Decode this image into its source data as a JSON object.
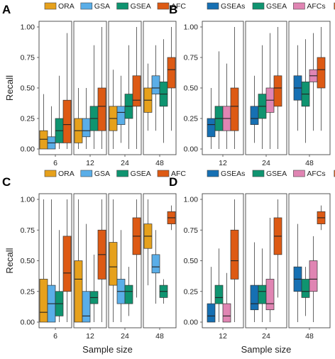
{
  "colors": {
    "ORA": "#e6a11c",
    "GSA": "#5aaee8",
    "GSEA": "#0f9470",
    "AFC": "#dd5a14",
    "GSEAs": "#1670b3",
    "AFCs": "#e085b3"
  },
  "chart_data": [
    {
      "type": "boxplot",
      "panel": "A",
      "xlabel": "",
      "ylabel": "Recall",
      "ylim": [
        0,
        1
      ],
      "yticks": [
        "0.00",
        "0.25",
        "0.50",
        "0.75",
        "1.00"
      ],
      "legend": [
        "ORA",
        "GSA",
        "GSEA",
        "AFC"
      ],
      "groups": [
        {
          "label": "6",
          "boxes": [
            {
              "series": "ORA",
              "min": 0.0,
              "q1": 0.0,
              "median": 0.08,
              "q3": 0.15,
              "max": 0.45
            },
            {
              "series": "GSA",
              "min": 0.0,
              "q1": 0.0,
              "median": 0.05,
              "q3": 0.1,
              "max": 0.35
            },
            {
              "series": "GSEA",
              "min": 0.0,
              "q1": 0.05,
              "median": 0.15,
              "q3": 0.25,
              "max": 0.6
            },
            {
              "series": "AFC",
              "min": 0.0,
              "q1": 0.05,
              "median": 0.2,
              "q3": 0.4,
              "max": 0.95
            }
          ]
        },
        {
          "label": "12",
          "boxes": [
            {
              "series": "ORA",
              "min": 0.0,
              "q1": 0.05,
              "median": 0.15,
              "q3": 0.25,
              "max": 0.5
            },
            {
              "series": "GSA",
              "min": 0.0,
              "q1": 0.1,
              "median": 0.15,
              "q3": 0.25,
              "max": 0.5
            },
            {
              "series": "GSEA",
              "min": 0.0,
              "q1": 0.15,
              "median": 0.25,
              "q3": 0.35,
              "max": 0.85
            },
            {
              "series": "AFC",
              "min": 0.0,
              "q1": 0.15,
              "median": 0.35,
              "q3": 0.5,
              "max": 1.0
            }
          ]
        },
        {
          "label": "24",
          "boxes": [
            {
              "series": "ORA",
              "min": 0.0,
              "q1": 0.15,
              "median": 0.25,
              "q3": 0.35,
              "max": 0.65
            },
            {
              "series": "GSA",
              "min": 0.05,
              "q1": 0.2,
              "median": 0.3,
              "q3": 0.35,
              "max": 0.6
            },
            {
              "series": "GSEA",
              "min": 0.0,
              "q1": 0.25,
              "median": 0.35,
              "q3": 0.45,
              "max": 0.85
            },
            {
              "series": "AFC",
              "min": 0.0,
              "q1": 0.35,
              "median": 0.4,
              "q3": 0.6,
              "max": 1.0
            }
          ]
        },
        {
          "label": "48",
          "boxes": [
            {
              "series": "ORA",
              "min": 0.15,
              "q1": 0.3,
              "median": 0.4,
              "q3": 0.5,
              "max": 0.7
            },
            {
              "series": "GSA",
              "min": 0.15,
              "q1": 0.45,
              "median": 0.5,
              "q3": 0.6,
              "max": 0.85
            },
            {
              "series": "GSEA",
              "min": 0.05,
              "q1": 0.35,
              "median": 0.45,
              "q3": 0.55,
              "max": 0.9
            },
            {
              "series": "AFC",
              "min": 0.15,
              "q1": 0.5,
              "median": 0.65,
              "q3": 0.75,
              "max": 1.0
            }
          ]
        }
      ]
    },
    {
      "type": "boxplot",
      "panel": "B",
      "xlabel": "",
      "ylabel": "",
      "ylim": [
        0,
        1
      ],
      "yticks": [
        "0.00",
        "0.25",
        "0.50",
        "0.75",
        "1.00"
      ],
      "legend": [
        "GSEAs",
        "GSEA",
        "AFCs",
        "AFC"
      ],
      "groups": [
        {
          "label": "12",
          "boxes": [
            {
              "series": "GSEAs",
              "min": 0.0,
              "q1": 0.1,
              "median": 0.2,
              "q3": 0.25,
              "max": 0.5
            },
            {
              "series": "GSEA",
              "min": 0.0,
              "q1": 0.15,
              "median": 0.25,
              "q3": 0.35,
              "max": 0.8
            },
            {
              "series": "AFCs",
              "min": 0.0,
              "q1": 0.15,
              "median": 0.25,
              "q3": 0.35,
              "max": 0.7
            },
            {
              "series": "AFC",
              "min": 0.0,
              "q1": 0.15,
              "median": 0.35,
              "q3": 0.5,
              "max": 1.0
            }
          ]
        },
        {
          "label": "24",
          "boxes": [
            {
              "series": "GSEAs",
              "min": 0.05,
              "q1": 0.2,
              "median": 0.25,
              "q3": 0.35,
              "max": 0.6
            },
            {
              "series": "GSEA",
              "min": 0.0,
              "q1": 0.25,
              "median": 0.35,
              "q3": 0.45,
              "max": 0.85
            },
            {
              "series": "AFCs",
              "min": 0.0,
              "q1": 0.3,
              "median": 0.4,
              "q3": 0.5,
              "max": 0.95
            },
            {
              "series": "AFC",
              "min": 0.0,
              "q1": 0.35,
              "median": 0.5,
              "q3": 0.6,
              "max": 1.0
            }
          ]
        },
        {
          "label": "48",
          "boxes": [
            {
              "series": "GSEAs",
              "min": 0.15,
              "q1": 0.4,
              "median": 0.5,
              "q3": 0.6,
              "max": 0.85
            },
            {
              "series": "GSEA",
              "min": 0.05,
              "q1": 0.35,
              "median": 0.45,
              "q3": 0.55,
              "max": 0.9
            },
            {
              "series": "AFCs",
              "min": 0.15,
              "q1": 0.55,
              "median": 0.6,
              "q3": 0.65,
              "max": 0.95
            },
            {
              "series": "AFC",
              "min": 0.15,
              "q1": 0.5,
              "median": 0.65,
              "q3": 0.75,
              "max": 1.0
            }
          ]
        }
      ]
    },
    {
      "type": "boxplot",
      "panel": "C",
      "xlabel": "Sample size",
      "ylabel": "Recall",
      "ylim": [
        0,
        1
      ],
      "yticks": [
        "0.00",
        "0.25",
        "0.50",
        "0.75",
        "1.00"
      ],
      "legend": [
        "ORA",
        "GSA",
        "GSEA",
        "AFC"
      ],
      "groups": [
        {
          "label": "6",
          "boxes": [
            {
              "series": "ORA",
              "min": 0.0,
              "q1": 0.0,
              "median": 0.08,
              "q3": 0.35,
              "max": 1.0
            },
            {
              "series": "GSA",
              "min": 0.0,
              "q1": 0.0,
              "median": 0.15,
              "q3": 0.3,
              "max": 1.0
            },
            {
              "series": "GSEA",
              "min": 0.0,
              "q1": 0.05,
              "median": 0.15,
              "q3": 0.25,
              "max": 0.75
            },
            {
              "series": "AFC",
              "min": 0.0,
              "q1": 0.25,
              "median": 0.4,
              "q3": 0.7,
              "max": 1.0
            }
          ]
        },
        {
          "label": "12",
          "boxes": [
            {
              "series": "ORA",
              "min": 0.0,
              "q1": 0.0,
              "median": 0.35,
              "q3": 0.5,
              "max": 1.0
            },
            {
              "series": "GSA",
              "min": 0.0,
              "q1": 0.0,
              "median": 0.05,
              "q3": 0.25,
              "max": 0.8
            },
            {
              "series": "GSEA",
              "min": 0.0,
              "q1": 0.15,
              "median": 0.2,
              "q3": 0.25,
              "max": 0.55
            },
            {
              "series": "AFC",
              "min": 0.0,
              "q1": 0.35,
              "median": 0.55,
              "q3": 0.75,
              "max": 1.0
            }
          ]
        },
        {
          "label": "24",
          "boxes": [
            {
              "series": "ORA",
              "min": 0.0,
              "q1": 0.3,
              "median": 0.45,
              "q3": 0.65,
              "max": 1.0
            },
            {
              "series": "GSA",
              "min": 0.0,
              "q1": 0.15,
              "median": 0.25,
              "q3": 0.35,
              "max": 0.75
            },
            {
              "series": "GSEA",
              "min": 0.05,
              "q1": 0.15,
              "median": 0.25,
              "q3": 0.3,
              "max": 0.45
            },
            {
              "series": "AFC",
              "min": 0.2,
              "q1": 0.55,
              "median": 0.7,
              "q3": 0.85,
              "max": 1.0
            }
          ]
        },
        {
          "label": "48",
          "boxes": [
            {
              "series": "ORA",
              "min": 0.3,
              "q1": 0.6,
              "median": 0.7,
              "q3": 0.8,
              "max": 1.0
            },
            {
              "series": "GSA",
              "min": 0.15,
              "q1": 0.4,
              "median": 0.45,
              "q3": 0.55,
              "max": 0.75
            },
            {
              "series": "GSEA",
              "min": 0.15,
              "q1": 0.2,
              "median": 0.25,
              "q3": 0.3,
              "max": 0.35
            },
            {
              "series": "AFC",
              "min": 0.75,
              "q1": 0.8,
              "median": 0.85,
              "q3": 0.9,
              "max": 0.95
            }
          ]
        }
      ]
    },
    {
      "type": "boxplot",
      "panel": "D",
      "xlabel": "Sample size",
      "ylabel": "",
      "ylim": [
        0,
        1
      ],
      "yticks": [
        "0.00",
        "0.25",
        "0.50",
        "0.75",
        "1.00"
      ],
      "legend": [
        "GSEAs",
        "GSEA",
        "AFCs",
        "AFC"
      ],
      "groups": [
        {
          "label": "12",
          "boxes": [
            {
              "series": "GSEAs",
              "min": 0.0,
              "q1": 0.0,
              "median": 0.05,
              "q3": 0.15,
              "max": 0.45
            },
            {
              "series": "GSEA",
              "min": 0.0,
              "q1": 0.15,
              "median": 0.2,
              "q3": 0.3,
              "max": 0.6
            },
            {
              "series": "AFCs",
              "min": 0.0,
              "q1": 0.0,
              "median": 0.05,
              "q3": 0.15,
              "max": 0.4
            },
            {
              "series": "AFC",
              "min": 0.0,
              "q1": 0.35,
              "median": 0.5,
              "q3": 0.75,
              "max": 1.0
            }
          ]
        },
        {
          "label": "24",
          "boxes": [
            {
              "series": "GSEAs",
              "min": 0.0,
              "q1": 0.1,
              "median": 0.15,
              "q3": 0.3,
              "max": 0.65
            },
            {
              "series": "GSEA",
              "min": 0.0,
              "q1": 0.15,
              "median": 0.25,
              "q3": 0.3,
              "max": 0.6
            },
            {
              "series": "AFCs",
              "min": 0.0,
              "q1": 0.1,
              "median": 0.15,
              "q3": 0.35,
              "max": 0.85
            },
            {
              "series": "AFC",
              "min": 0.2,
              "q1": 0.55,
              "median": 0.7,
              "q3": 0.85,
              "max": 1.0
            }
          ]
        },
        {
          "label": "48",
          "boxes": [
            {
              "series": "GSEAs",
              "min": 0.0,
              "q1": 0.25,
              "median": 0.35,
              "q3": 0.45,
              "max": 0.8
            },
            {
              "series": "GSEA",
              "min": 0.05,
              "q1": 0.2,
              "median": 0.25,
              "q3": 0.35,
              "max": 0.45
            },
            {
              "series": "AFCs",
              "min": 0.0,
              "q1": 0.25,
              "median": 0.35,
              "q3": 0.5,
              "max": 0.7
            },
            {
              "series": "AFC",
              "min": 0.75,
              "q1": 0.8,
              "median": 0.85,
              "q3": 0.9,
              "max": 0.95
            }
          ]
        }
      ]
    }
  ]
}
